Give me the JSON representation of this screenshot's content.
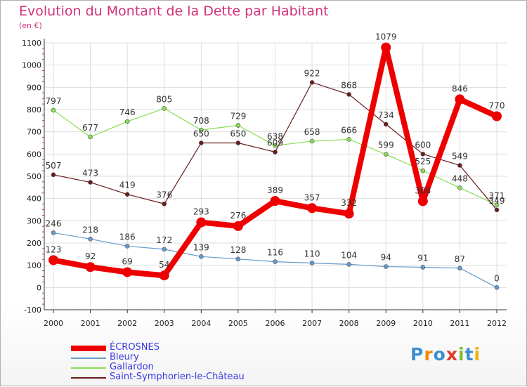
{
  "title": "Evolution du Montant de la Dette par Habitant",
  "unit_label": "(en €)",
  "logo": {
    "letters": [
      "P",
      "r",
      "o",
      "x",
      "i",
      "t",
      "i"
    ],
    "colors": [
      "#3a8fd0",
      "#f08a00",
      "#3a8fd0",
      "#e23a2a",
      "#7cbf2a",
      "#3a8fd0",
      "#f0b000"
    ]
  },
  "chart_data": {
    "type": "line",
    "x": [
      2000,
      2001,
      2002,
      2003,
      2004,
      2005,
      2006,
      2007,
      2008,
      2009,
      2010,
      2011,
      2012
    ],
    "ylim": [
      -100,
      1100
    ],
    "yticks": [
      -100,
      0,
      100,
      200,
      300,
      400,
      500,
      600,
      700,
      800,
      900,
      1000,
      1100
    ],
    "grid": true,
    "legend_position": "bottom-left",
    "series": [
      {
        "name": "ÉCROSNES",
        "color": "#ee0000",
        "values": [
          123,
          92,
          69,
          54,
          293,
          276,
          389,
          357,
          332,
          1079,
          388,
          846,
          770
        ]
      },
      {
        "name": "Bleury",
        "color": "#6699cc",
        "values": [
          246,
          218,
          186,
          172,
          139,
          128,
          116,
          110,
          104,
          94,
          91,
          87,
          0
        ]
      },
      {
        "name": "Gallardon",
        "color": "#88dd55",
        "values": [
          797,
          677,
          746,
          805,
          708,
          729,
          638,
          658,
          666,
          599,
          525,
          448,
          371
        ]
      },
      {
        "name": "Saint-Symphorien-le-Château",
        "color": "#6b1a1a",
        "values": [
          507,
          473,
          419,
          376,
          650,
          650,
          609,
          922,
          868,
          734,
          600,
          549,
          349
        ]
      }
    ]
  }
}
